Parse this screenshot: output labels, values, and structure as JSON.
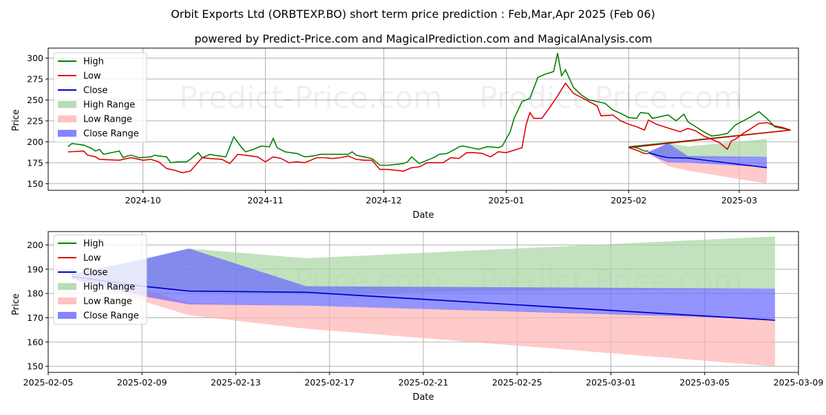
{
  "header": {
    "title": "Orbit Exports Ltd (ORBTEXP.BO) short term price prediction : Feb,Mar,Apr 2025 (Feb 06)",
    "subtitle": "powered by Predict-Price.com and MagicalPrediction.com and MagicalAnalysis.com"
  },
  "watermark": "Predict-Price.com",
  "colors": {
    "high": "#008000",
    "low": "#e00000",
    "close": "#0000cc",
    "high_range": "#a8d5a2",
    "low_range": "#ffb3b3",
    "close_range": "#6666ff"
  },
  "chart_data": [
    {
      "type": "line",
      "xlabel": "Date",
      "ylabel": "Price",
      "x_axis": "date",
      "xlim": [
        "2024-09-07",
        "2025-03-16"
      ],
      "ylim": [
        142,
        312
      ],
      "xticks": [
        "2024-10",
        "2024-11",
        "2024-12",
        "2025-01",
        "2025-02",
        "2025-03"
      ],
      "xtick_dates": [
        "2024-10-01",
        "2024-11-01",
        "2024-12-01",
        "2025-01-01",
        "2025-02-01",
        "2025-03-01"
      ],
      "yticks": [
        150,
        175,
        200,
        225,
        250,
        275,
        300
      ],
      "grid": true,
      "legend_position": "upper-left",
      "legend": [
        "High",
        "Low",
        "Close",
        "High Range",
        "Low Range",
        "Close Range"
      ],
      "series": [
        {
          "name": "High",
          "points": [
            [
              "2024-09-12",
              194
            ],
            [
              "2024-09-13",
              198
            ],
            [
              "2024-09-16",
              196
            ],
            [
              "2024-09-18",
              192
            ],
            [
              "2024-09-19",
              189
            ],
            [
              "2024-09-20",
              191
            ],
            [
              "2024-09-21",
              185
            ],
            [
              "2024-09-24",
              188
            ],
            [
              "2024-09-25",
              189
            ],
            [
              "2024-09-26",
              181
            ],
            [
              "2024-09-27",
              183
            ],
            [
              "2024-09-28",
              184
            ],
            [
              "2024-09-30",
              181
            ],
            [
              "2024-10-03",
              182
            ],
            [
              "2024-10-04",
              184
            ],
            [
              "2024-10-05",
              183
            ],
            [
              "2024-10-07",
              182
            ],
            [
              "2024-10-08",
              175
            ],
            [
              "2024-10-10",
              176
            ],
            [
              "2024-10-12",
              176
            ],
            [
              "2024-10-13",
              179
            ],
            [
              "2024-10-15",
              187
            ],
            [
              "2024-10-16",
              181
            ],
            [
              "2024-10-18",
              185
            ],
            [
              "2024-10-19",
              184
            ],
            [
              "2024-10-22",
              182
            ],
            [
              "2024-10-24",
              206
            ],
            [
              "2024-10-26",
              193
            ],
            [
              "2024-10-27",
              188
            ],
            [
              "2024-10-29",
              191
            ],
            [
              "2024-10-31",
              195
            ],
            [
              "2024-11-02",
              194
            ],
            [
              "2024-11-03",
              204
            ],
            [
              "2024-11-04",
              193
            ],
            [
              "2024-11-06",
              188
            ],
            [
              "2024-11-09",
              186
            ],
            [
              "2024-11-11",
              182
            ],
            [
              "2024-11-13",
              183
            ],
            [
              "2024-11-15",
              185
            ],
            [
              "2024-11-17",
              185
            ],
            [
              "2024-11-19",
              185
            ],
            [
              "2024-11-20",
              185
            ],
            [
              "2024-11-22",
              185
            ],
            [
              "2024-11-23",
              188
            ],
            [
              "2024-11-24",
              184
            ],
            [
              "2024-11-26",
              182
            ],
            [
              "2024-11-28",
              180
            ],
            [
              "2024-11-30",
              172
            ],
            [
              "2024-12-02",
              172
            ],
            [
              "2024-12-04",
              173
            ],
            [
              "2024-12-06",
              174
            ],
            [
              "2024-12-07",
              176
            ],
            [
              "2024-12-08",
              182
            ],
            [
              "2024-12-09",
              178
            ],
            [
              "2024-12-10",
              174
            ],
            [
              "2024-12-12",
              178
            ],
            [
              "2024-12-14",
              182
            ],
            [
              "2024-12-15",
              185
            ],
            [
              "2024-12-17",
              186
            ],
            [
              "2024-12-19",
              191
            ],
            [
              "2024-12-20",
              194
            ],
            [
              "2024-12-21",
              195
            ],
            [
              "2024-12-23",
              193
            ],
            [
              "2024-12-25",
              191
            ],
            [
              "2024-12-27",
              194
            ],
            [
              "2024-12-28",
              194
            ],
            [
              "2024-12-30",
              193
            ],
            [
              "2024-12-31",
              195
            ],
            [
              "2025-01-02",
              212
            ],
            [
              "2025-01-03",
              228
            ],
            [
              "2025-01-05",
              248
            ],
            [
              "2025-01-07",
              252
            ],
            [
              "2025-01-09",
              277
            ],
            [
              "2025-01-11",
              281
            ],
            [
              "2025-01-13",
              284
            ],
            [
              "2025-01-14",
              306
            ],
            [
              "2025-01-15",
              279
            ],
            [
              "2025-01-16",
              286
            ],
            [
              "2025-01-18",
              265
            ],
            [
              "2025-01-20",
              256
            ],
            [
              "2025-01-22",
              250
            ],
            [
              "2025-01-24",
              248
            ],
            [
              "2025-01-26",
              246
            ],
            [
              "2025-01-28",
              238
            ],
            [
              "2025-01-30",
              234
            ],
            [
              "2025-02-01",
              229
            ],
            [
              "2025-02-03",
              228
            ],
            [
              "2025-02-04",
              235
            ],
            [
              "2025-02-06",
              234
            ],
            [
              "2025-02-07",
              228
            ],
            [
              "2025-02-09",
              230
            ],
            [
              "2025-02-11",
              232
            ],
            [
              "2025-02-13",
              225
            ],
            [
              "2025-02-15",
              233
            ],
            [
              "2025-02-16",
              224
            ],
            [
              "2025-02-18",
              218
            ],
            [
              "2025-02-20",
              212
            ],
            [
              "2025-02-22",
              207
            ],
            [
              "2025-02-24",
              208
            ],
            [
              "2025-02-26",
              210
            ],
            [
              "2025-02-28",
              220
            ],
            [
              "2025-03-02",
              225
            ],
            [
              "2025-03-04",
              230
            ],
            [
              "2025-03-06",
              236
            ],
            [
              "2025-03-08",
              228
            ],
            [
              "2025-03-10",
              218
            ],
            [
              "2025-03-12",
              216
            ],
            [
              "2025-03-14",
              214
            ],
            [
              "2025-02-01",
              194
            ],
            [
              "2025-02-03",
              193
            ],
            [
              "2025-02-05",
              189
            ],
            [
              "2025-02-06",
              189
            ]
          ]
        },
        {
          "name": "Low",
          "points": [
            [
              "2024-09-12",
              188
            ],
            [
              "2024-09-16",
              189
            ],
            [
              "2024-09-17",
              184
            ],
            [
              "2024-09-19",
              182
            ],
            [
              "2024-09-20",
              179
            ],
            [
              "2024-09-25",
              178
            ],
            [
              "2024-09-28",
              181
            ],
            [
              "2024-10-01",
              178
            ],
            [
              "2024-10-03",
              179
            ],
            [
              "2024-10-05",
              176
            ],
            [
              "2024-10-07",
              168
            ],
            [
              "2024-10-09",
              166
            ],
            [
              "2024-10-11",
              163
            ],
            [
              "2024-10-13",
              165
            ],
            [
              "2024-10-16",
              181
            ],
            [
              "2024-10-18",
              180
            ],
            [
              "2024-10-21",
              179
            ],
            [
              "2024-10-23",
              174
            ],
            [
              "2024-10-25",
              185
            ],
            [
              "2024-10-27",
              184
            ],
            [
              "2024-10-30",
              182
            ],
            [
              "2024-11-01",
              176
            ],
            [
              "2024-11-03",
              182
            ],
            [
              "2024-11-05",
              180
            ],
            [
              "2024-11-07",
              175
            ],
            [
              "2024-11-09",
              176
            ],
            [
              "2024-11-11",
              175
            ],
            [
              "2024-11-14",
              181
            ],
            [
              "2024-11-16",
              181
            ],
            [
              "2024-11-18",
              180
            ],
            [
              "2024-11-20",
              181
            ],
            [
              "2024-11-22",
              183
            ],
            [
              "2024-11-24",
              179
            ],
            [
              "2024-11-26",
              178
            ],
            [
              "2024-11-28",
              178
            ],
            [
              "2024-11-30",
              167
            ],
            [
              "2024-12-02",
              167
            ],
            [
              "2024-12-04",
              166
            ],
            [
              "2024-12-06",
              165
            ],
            [
              "2024-12-08",
              169
            ],
            [
              "2024-12-10",
              170
            ],
            [
              "2024-12-12",
              175
            ],
            [
              "2024-12-14",
              175
            ],
            [
              "2024-12-16",
              175
            ],
            [
              "2024-12-18",
              181
            ],
            [
              "2024-12-20",
              180
            ],
            [
              "2024-12-22",
              187
            ],
            [
              "2024-12-24",
              187
            ],
            [
              "2024-12-26",
              186
            ],
            [
              "2024-12-28",
              182
            ],
            [
              "2024-12-30",
              188
            ],
            [
              "2025-01-01",
              187
            ],
            [
              "2025-01-03",
              190
            ],
            [
              "2025-01-05",
              193
            ],
            [
              "2025-01-06",
              220
            ],
            [
              "2025-01-07",
              235
            ],
            [
              "2025-01-08",
              228
            ],
            [
              "2025-01-10",
              228
            ],
            [
              "2025-01-12",
              241
            ],
            [
              "2025-01-14",
              255
            ],
            [
              "2025-01-16",
              270
            ],
            [
              "2025-01-18",
              258
            ],
            [
              "2025-01-20",
              253
            ],
            [
              "2025-01-22",
              248
            ],
            [
              "2025-01-24",
              243
            ],
            [
              "2025-01-25",
              231
            ],
            [
              "2025-01-28",
              232
            ],
            [
              "2025-01-30",
              225
            ],
            [
              "2025-02-01",
              221
            ],
            [
              "2025-02-03",
              218
            ],
            [
              "2025-02-05",
              214
            ],
            [
              "2025-02-06",
              226
            ],
            [
              "2025-02-08",
              221
            ],
            [
              "2025-02-10",
              218
            ],
            [
              "2025-02-12",
              215
            ],
            [
              "2025-02-14",
              212
            ],
            [
              "2025-02-16",
              216
            ],
            [
              "2025-02-18",
              213
            ],
            [
              "2025-02-20",
              207
            ],
            [
              "2025-02-22",
              203
            ],
            [
              "2025-02-24",
              199
            ],
            [
              "2025-02-26",
              191
            ],
            [
              "2025-02-27",
              201
            ],
            [
              "2025-02-28",
              203
            ],
            [
              "2025-03-02",
              210
            ],
            [
              "2025-03-04",
              216
            ],
            [
              "2025-03-06",
              222
            ],
            [
              "2025-03-08",
              223
            ],
            [
              "2025-03-10",
              219
            ],
            [
              "2025-03-12",
              217
            ],
            [
              "2025-03-14",
              214
            ],
            [
              "2025-02-01",
              193
            ],
            [
              "2025-02-03",
              190
            ],
            [
              "2025-02-05",
              186
            ],
            [
              "2025-02-06",
              186
            ]
          ]
        }
      ]
    },
    {
      "type": "area",
      "xlabel": "Date",
      "ylabel": "Price",
      "x_axis": "date",
      "xlim": [
        "2025-02-05",
        "2025-03-09"
      ],
      "ylim": [
        147.5,
        205.5
      ],
      "xticks": [
        "2025-02-05",
        "2025-02-09",
        "2025-02-13",
        "2025-02-17",
        "2025-02-21",
        "2025-02-25",
        "2025-03-01",
        "2025-03-05",
        "2025-03-09"
      ],
      "yticks": [
        150,
        160,
        170,
        180,
        190,
        200
      ],
      "grid": true,
      "legend_position": "upper-left",
      "legend": [
        "High",
        "Low",
        "Close",
        "High Range",
        "Low Range",
        "Close Range"
      ],
      "dates": [
        "2025-02-06",
        "2025-02-09",
        "2025-02-11",
        "2025-02-16",
        "2025-03-08"
      ],
      "close": [
        187,
        183,
        181,
        180.5,
        169
      ],
      "close_range_upper": [
        188,
        194,
        198.5,
        183,
        182
      ],
      "close_range_lower": [
        186,
        179,
        175.5,
        175,
        169.5
      ],
      "high_range_upper": [
        188,
        194,
        198.5,
        194.5,
        203.5
      ],
      "high_range_lower": [
        187,
        183,
        181,
        180,
        182
      ],
      "low_range_upper": [
        186.5,
        182,
        176,
        175,
        170
      ],
      "low_range_lower": [
        186,
        177,
        171,
        165.5,
        150
      ]
    }
  ]
}
